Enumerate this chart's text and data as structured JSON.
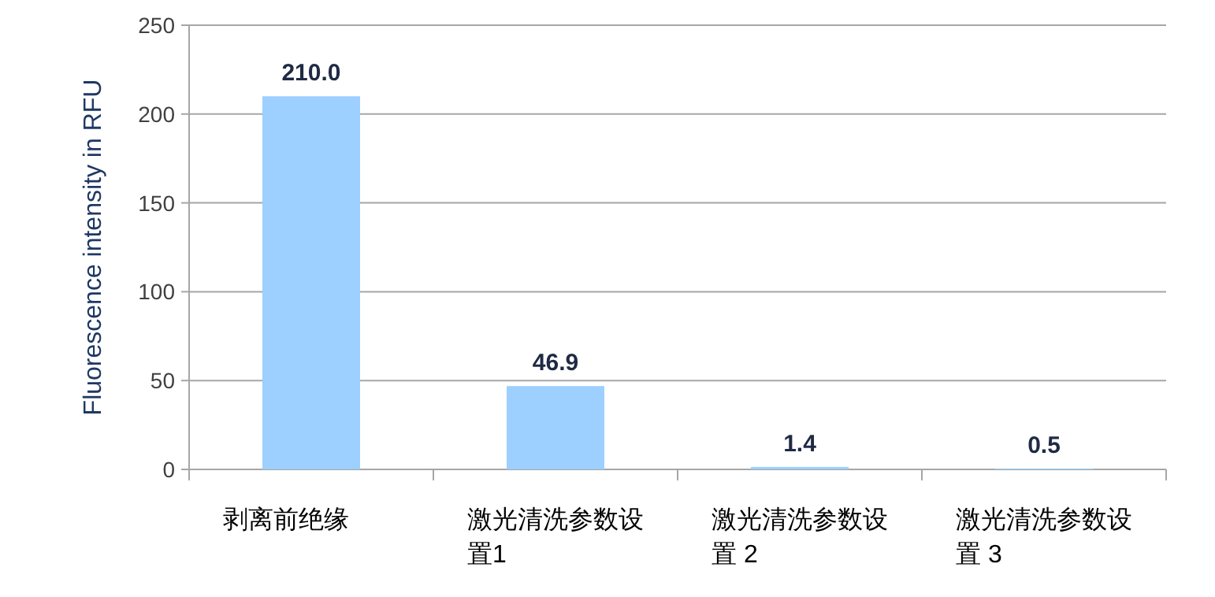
{
  "chart_data": {
    "type": "bar",
    "ylabel": "Fluorescence intensity in RFU",
    "categories": [
      "剥离前绝缘",
      "激光清洗参数设置1",
      "激光清洗参数设置 2",
      "激光清洗参数设置 3"
    ],
    "values": [
      210.0,
      46.9,
      1.4,
      0.5
    ],
    "value_labels": [
      "210.0",
      "46.9",
      "1.4",
      "0.5"
    ],
    "color": "#9dcfff",
    "ylim": [
      0,
      250
    ],
    "yticks": [
      0,
      50,
      100,
      150,
      200,
      250
    ],
    "grid": "y"
  }
}
